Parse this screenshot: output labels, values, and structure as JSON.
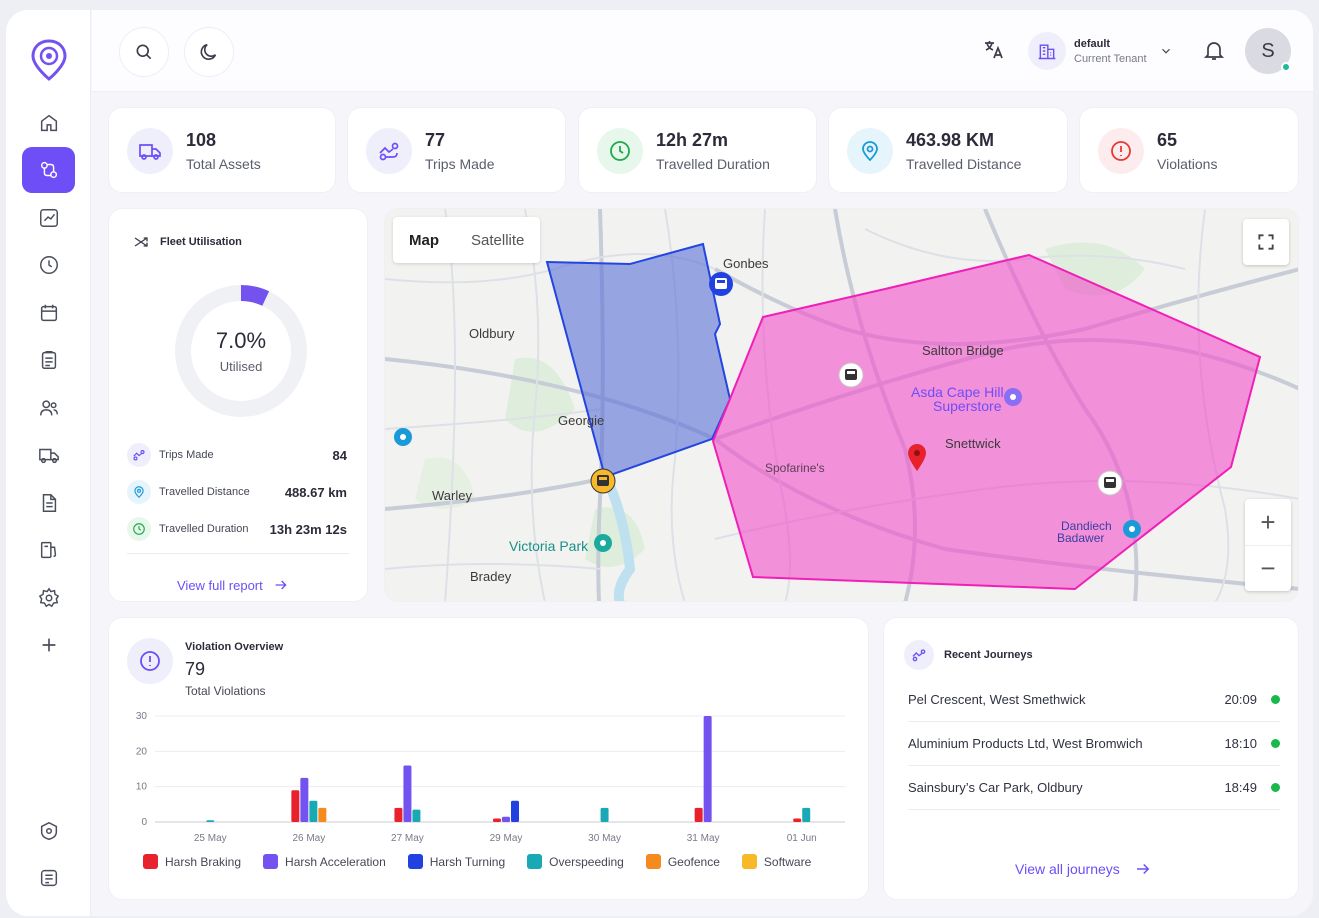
{
  "topbar": {
    "tenant_name": "default",
    "tenant_sub": "Current Tenant",
    "avatar_initial": "S"
  },
  "stats": [
    {
      "value": "108",
      "label": "Total Assets",
      "icon": "truck-icon",
      "color": "#6e4ef6"
    },
    {
      "value": "77",
      "label": "Trips Made",
      "icon": "route-icon",
      "color": "#6e4ef6"
    },
    {
      "value": "12h 27m",
      "label": "Travelled Duration",
      "icon": "clock-icon",
      "color": "#1faa4b"
    },
    {
      "value": "463.98 KM",
      "label": "Travelled Distance",
      "icon": "location-pin-icon",
      "color": "#1a9ad8"
    },
    {
      "value": "65",
      "label": "Violations",
      "icon": "alert-icon",
      "color": "#e53935"
    }
  ],
  "fleet": {
    "title": "Fleet Utilisation",
    "utilised_percent": 7.0,
    "percent_label": "7.0%",
    "utilised_label": "Utilised",
    "metrics": [
      {
        "label": "Trips Made",
        "value": "84"
      },
      {
        "label": "Travelled Distance",
        "value": "488.67 km"
      },
      {
        "label": "Travelled Duration",
        "value": "13h 23m 12s"
      }
    ],
    "link": "View full report"
  },
  "map": {
    "tabs": [
      "Map",
      "Satellite"
    ],
    "places": [
      "Oldbury",
      "Warley",
      "Victoria Park",
      "Bradey",
      "Gonbes",
      "Saltton Bridge",
      "Asda Cape Hill",
      "Superstore",
      "Snettwick",
      "Georgie",
      "Spofarine's",
      "Dandiech",
      "Badawer"
    ],
    "zoom_in": "+",
    "zoom_out": "−"
  },
  "violations": {
    "title": "Violation Overview",
    "total": "79",
    "total_label": "Total Violations"
  },
  "chart_data": {
    "type": "bar",
    "categories": [
      "25 May",
      "26 May",
      "27 May",
      "29 May",
      "30 May",
      "31 May",
      "01 Jun"
    ],
    "ylim": [
      0,
      30
    ],
    "yticks": [
      "30",
      "20",
      "10",
      "0"
    ],
    "series": [
      {
        "name": "Harsh Braking",
        "color": "#e8222c",
        "values": [
          0,
          9,
          4,
          1,
          0,
          4,
          1
        ]
      },
      {
        "name": "Harsh Acceleration",
        "color": "#7352f0",
        "values": [
          0,
          12.5,
          16,
          1.5,
          0,
          30,
          0
        ]
      },
      {
        "name": "Harsh Turning",
        "color": "#2142e0",
        "values": [
          0,
          0,
          0,
          6,
          0,
          0,
          0
        ]
      },
      {
        "name": "Overspeeding",
        "color": "#19a9b5",
        "values": [
          0.5,
          6,
          3.5,
          0,
          4,
          0,
          4
        ]
      },
      {
        "name": "Geofence",
        "color": "#f58a1f",
        "values": [
          0,
          4,
          0,
          0,
          0,
          0,
          0
        ]
      },
      {
        "name": "Software",
        "color": "#f7b928",
        "values": [
          0,
          0,
          0,
          0,
          0,
          0,
          0
        ]
      }
    ]
  },
  "journeys": {
    "title": "Recent Journeys",
    "items": [
      {
        "name": "Pel Crescent, West Smethwick",
        "time": "20:09"
      },
      {
        "name": "Aluminium Products Ltd, West Bromwich",
        "time": "18:10"
      },
      {
        "name": "Sainsbury’s Car Park, Oldbury",
        "time": "18:49"
      }
    ],
    "link": "View all journeys"
  }
}
